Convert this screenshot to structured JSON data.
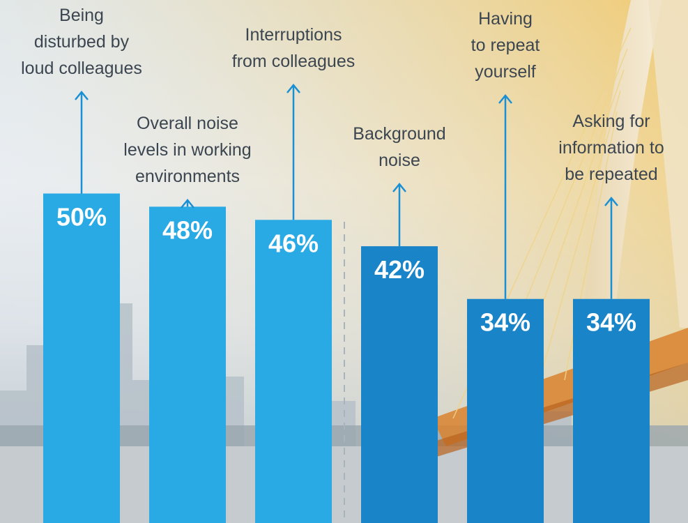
{
  "chart_data": {
    "type": "bar",
    "categories": [
      "Being disturbed by loud colleagues",
      "Overall noise levels in working environments",
      "Interruptions from colleagues",
      "Background noise",
      "Having to repeat yourself",
      "Asking for information to be repeated"
    ],
    "label_lines": [
      [
        "Being",
        "disturbed by",
        "loud colleagues"
      ],
      [
        "Overall noise",
        "levels in working",
        "environments"
      ],
      [
        "Interruptions",
        "from colleagues"
      ],
      [
        "Background",
        "noise"
      ],
      [
        "Having",
        "to repeat",
        "yourself"
      ],
      [
        "Asking for",
        "information to",
        "be repeated"
      ]
    ],
    "values": [
      50,
      48,
      46,
      42,
      34,
      34
    ],
    "value_labels": [
      "50%",
      "48%",
      "46%",
      "42%",
      "34%",
      "34%"
    ],
    "unit": "%",
    "colors": {
      "group_1": "#2aaae4",
      "group_2": "#1a84c9",
      "label_text": "#3c4650",
      "value_text": "#ffffff",
      "arrow": "#1a90d4",
      "separator": "#a9b3ba"
    },
    "grid": false,
    "legend": "none"
  }
}
